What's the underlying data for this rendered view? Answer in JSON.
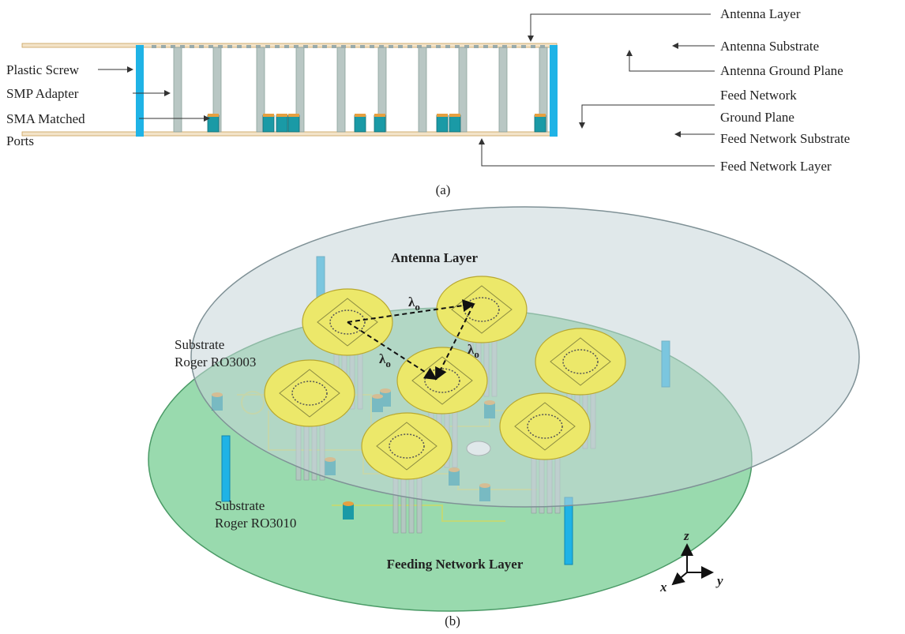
{
  "panel_a": {
    "caption": "(a)",
    "left_labels": [
      "Plastic Screw",
      "SMP Adapter",
      "SMA Matched",
      "Ports"
    ],
    "right_labels": [
      "Antenna Layer",
      "Antenna Substrate",
      "Antenna Ground Plane",
      "Feed Network",
      "Ground Plane",
      "Feed Network Substrate",
      "Feed Network Layer"
    ]
  },
  "panel_b": {
    "caption": "(b)",
    "top_label": "Antenna Layer",
    "bottom_label": "Feeding Network Layer",
    "upper_substrate": [
      "Substrate",
      "Roger RO3003"
    ],
    "lower_substrate": [
      "Substrate",
      "Roger RO3010"
    ],
    "spacing_labels": [
      {
        "symbol": "λ",
        "subscript": "o"
      },
      {
        "symbol": "λ",
        "subscript": "o"
      },
      {
        "symbol": "λ",
        "subscript": "o"
      }
    ],
    "axes": [
      "z",
      "x",
      "y"
    ]
  }
}
